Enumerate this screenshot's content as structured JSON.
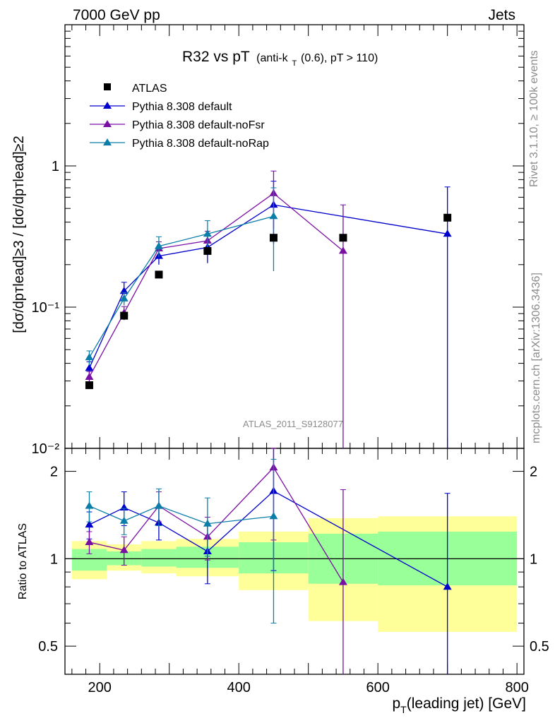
{
  "header": {
    "left": "7000 GeV pp",
    "right": "Jets",
    "plot_title_main": "R32 vs pT",
    "plot_title_sub_a": "(anti-k",
    "plot_title_sub_sub": "T",
    "plot_title_sub_b": "(0.6), pT > 110)",
    "rivet": "Rivet 3.1.10, ≥ 100k events",
    "site": "mcplots.cern.ch [arXiv:1306.3436]",
    "analysis": "ATLAS_2011_S9128077"
  },
  "axes": {
    "ylabel_main": "[dσ/dpᴛlead]≥3 / [dσ/dpᴛlead]≥2",
    "ylabel_ratio": "Ratio to ATLAS",
    "xlabel": "p",
    "xlabel_sub": "T",
    "xlabel_rest": "(leading jet) [GeV]",
    "main_yticks": [
      "10⁻²",
      "10⁻¹",
      "1"
    ],
    "ratio_yticks": [
      "0.5",
      "1",
      "2"
    ],
    "xticks": [
      "200",
      "400",
      "600",
      "800"
    ]
  },
  "legend": [
    "ATLAS",
    "Pythia 8.308 default",
    "Pythia 8.308 default-noFsr",
    "Pythia 8.308 default-noRap"
  ],
  "colors": {
    "data": "#000000",
    "default": "#0000cc",
    "noFsr": "#7a0fa3",
    "noRap": "#0a7ea8",
    "band_green": "#99ff99",
    "band_yellow": "#ffff99"
  },
  "chart_data": [
    {
      "type": "scatter",
      "title": "R32 vs pT",
      "xlabel": "pT(leading jet) [GeV]",
      "ylabel": "[dσ/dpT lead]≥3 / [dσ/dpT lead]≥2",
      "xlim": [
        150,
        810
      ],
      "ylim": [
        0.01,
        10
      ],
      "yscale": "log",
      "series": [
        {
          "name": "ATLAS",
          "x": [
            185,
            235,
            285,
            355,
            450,
            550,
            700
          ],
          "y": [
            0.028,
            0.087,
            0.17,
            0.25,
            0.31,
            0.31,
            0.43
          ]
        },
        {
          "name": "Pythia 8.308 default",
          "x": [
            185,
            235,
            285,
            355,
            450,
            700
          ],
          "y": [
            0.037,
            0.13,
            0.23,
            0.265,
            0.53,
            0.33
          ],
          "yerr": [
            0.004,
            0.02,
            0.03,
            0.06,
            0.25,
            0.38
          ]
        },
        {
          "name": "Pythia 8.308 default-noFsr",
          "x": [
            185,
            235,
            285,
            355,
            450,
            550
          ],
          "y": [
            0.032,
            0.091,
            0.26,
            0.295,
            0.64,
            0.25
          ],
          "yerr": [
            0.003,
            0.01,
            0.03,
            0.05,
            0.28,
            0.28
          ]
        },
        {
          "name": "Pythia 8.308 default-noRap",
          "x": [
            185,
            235,
            285,
            355,
            450
          ],
          "y": [
            0.044,
            0.115,
            0.27,
            0.33,
            0.44
          ],
          "yerr": [
            0.005,
            0.012,
            0.045,
            0.08,
            0.26
          ]
        }
      ]
    },
    {
      "type": "line",
      "ylabel": "Ratio to ATLAS",
      "xlabel": "pT(leading jet) [GeV]",
      "xlim": [
        150,
        810
      ],
      "ylim": [
        0.4,
        2.4
      ],
      "yscale": "log",
      "bands": [
        {
          "x0": 160,
          "x1": 210,
          "g_lo": 0.91,
          "g_hi": 1.08,
          "y_lo": 0.85,
          "y_hi": 1.15
        },
        {
          "x0": 210,
          "x1": 260,
          "g_lo": 0.95,
          "g_hi": 1.06,
          "y_lo": 0.91,
          "y_hi": 1.12
        },
        {
          "x0": 260,
          "x1": 310,
          "g_lo": 0.94,
          "g_hi": 1.08,
          "y_lo": 0.89,
          "y_hi": 1.15
        },
        {
          "x0": 310,
          "x1": 400,
          "g_lo": 0.93,
          "g_hi": 1.1,
          "y_lo": 0.87,
          "y_hi": 1.17
        },
        {
          "x0": 400,
          "x1": 500,
          "g_lo": 0.89,
          "g_hi": 1.14,
          "y_lo": 0.78,
          "y_hi": 1.24
        },
        {
          "x0": 500,
          "x1": 600,
          "g_lo": 0.82,
          "g_hi": 1.22,
          "y_lo": 0.61,
          "y_hi": 1.38
        },
        {
          "x0": 600,
          "x1": 800,
          "g_lo": 0.81,
          "g_hi": 1.24,
          "y_lo": 0.56,
          "y_hi": 1.4
        }
      ],
      "series": [
        {
          "name": "Pythia 8.308 default",
          "x": [
            185,
            235,
            285,
            355,
            450,
            700
          ],
          "y": [
            1.31,
            1.5,
            1.33,
            1.06,
            1.71,
            0.8
          ],
          "yerr": [
            0.14,
            0.2,
            0.17,
            0.24,
            0.8,
            0.88
          ]
        },
        {
          "name": "Pythia 8.308 default-noFsr",
          "x": [
            185,
            235,
            285,
            355,
            450,
            550
          ],
          "y": [
            1.14,
            1.07,
            1.52,
            1.19,
            2.06,
            0.83
          ],
          "yerr": [
            0.1,
            0.12,
            0.18,
            0.2,
            0.9,
            0.9
          ]
        },
        {
          "name": "Pythia 8.308 default-noRap",
          "x": [
            185,
            235,
            285,
            355,
            450
          ],
          "y": [
            1.52,
            1.35,
            1.52,
            1.32,
            1.4
          ],
          "yerr": [
            0.18,
            0.14,
            0.22,
            0.3,
            0.8
          ]
        }
      ]
    }
  ]
}
